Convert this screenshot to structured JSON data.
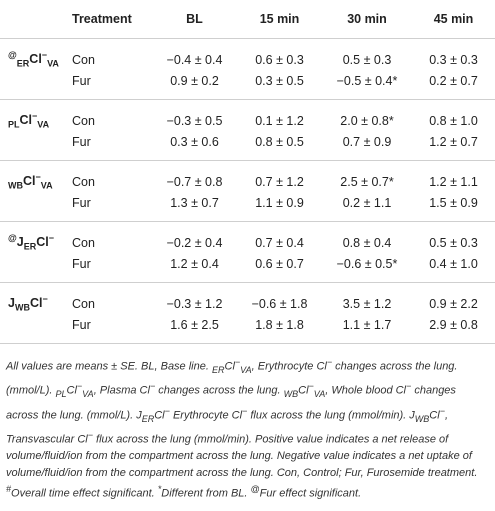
{
  "table": {
    "columns": [
      "Treatment",
      "BL",
      "15 min",
      "30 min",
      "45 min"
    ],
    "groups": [
      {
        "label": [
          {
            "t": "@",
            "s": "sup"
          },
          {
            "t": "ER",
            "s": "sub"
          },
          {
            "t": "Cl",
            "s": "n"
          },
          {
            "t": "−",
            "s": "sup"
          },
          {
            "t": "VA",
            "s": "sub"
          }
        ],
        "rows": [
          {
            "treatment": "Con",
            "values": [
              "−0.4 ± 0.4",
              "0.6 ± 0.3",
              "0.5 ± 0.3",
              "0.3 ± 0.3"
            ]
          },
          {
            "treatment": "Fur",
            "values": [
              "0.9 ± 0.2",
              "0.3 ± 0.5",
              "−0.5 ± 0.4*",
              "0.2 ± 0.7"
            ]
          }
        ]
      },
      {
        "label": [
          {
            "t": "PL",
            "s": "sub"
          },
          {
            "t": "Cl",
            "s": "n"
          },
          {
            "t": "−",
            "s": "sup"
          },
          {
            "t": "VA",
            "s": "sub"
          }
        ],
        "rows": [
          {
            "treatment": "Con",
            "values": [
              "−0.3 ± 0.5",
              "0.1 ± 1.2",
              "2.0 ± 0.8*",
              "0.8 ± 1.0"
            ]
          },
          {
            "treatment": "Fur",
            "values": [
              "0.3 ± 0.6",
              "0.8 ± 0.5",
              "0.7 ± 0.9",
              "1.2 ± 0.7"
            ]
          }
        ]
      },
      {
        "label": [
          {
            "t": "WB",
            "s": "sub"
          },
          {
            "t": "Cl",
            "s": "n"
          },
          {
            "t": "−",
            "s": "sup"
          },
          {
            "t": "VA",
            "s": "sub"
          }
        ],
        "rows": [
          {
            "treatment": "Con",
            "values": [
              "−0.7 ± 0.8",
              "0.7 ± 1.2",
              "2.5 ± 0.7*",
              "1.2 ± 1.1"
            ]
          },
          {
            "treatment": "Fur",
            "values": [
              "1.3 ± 0.7",
              "1.1 ± 0.9",
              "0.2 ± 1.1",
              "1.5 ± 0.9"
            ]
          }
        ]
      },
      {
        "label": [
          {
            "t": "@",
            "s": "sup"
          },
          {
            "t": "J",
            "s": "n"
          },
          {
            "t": "ER",
            "s": "sub"
          },
          {
            "t": "Cl",
            "s": "n"
          },
          {
            "t": "−",
            "s": "sup"
          }
        ],
        "rows": [
          {
            "treatment": "Con",
            "values": [
              "−0.2 ± 0.4",
              "0.7 ± 0.4",
              "0.8 ± 0.4",
              "0.5 ± 0.3"
            ]
          },
          {
            "treatment": "Fur",
            "values": [
              "1.2 ± 0.4",
              "0.6 ± 0.7",
              "−0.6 ± 0.5*",
              "0.4 ± 1.0"
            ]
          }
        ]
      },
      {
        "label": [
          {
            "t": "J",
            "s": "n"
          },
          {
            "t": "WB",
            "s": "sub"
          },
          {
            "t": "Cl",
            "s": "n"
          },
          {
            "t": "−",
            "s": "sup"
          }
        ],
        "rows": [
          {
            "treatment": "Con",
            "values": [
              "−0.3 ± 1.2",
              "−0.6 ± 1.8",
              "3.5 ± 1.2",
              "0.9 ± 2.2"
            ]
          },
          {
            "treatment": "Fur",
            "values": [
              "1.6 ± 2.5",
              "1.8 ± 1.8",
              "1.1 ± 1.7",
              "2.9 ± 0.8"
            ]
          }
        ]
      }
    ],
    "footnote": [
      {
        "t": "All values are means ± SE. BL, Base line. ",
        "s": "n"
      },
      {
        "t": "ER",
        "s": "sub"
      },
      {
        "t": "Cl",
        "s": "n"
      },
      {
        "t": "−",
        "s": "sup"
      },
      {
        "t": "VA",
        "s": "sub"
      },
      {
        "t": ", Erythrocyte Cl",
        "s": "n"
      },
      {
        "t": "−",
        "s": "sup"
      },
      {
        "t": " changes across the lung. (mmol/L). ",
        "s": "n"
      },
      {
        "t": "PL",
        "s": "sub"
      },
      {
        "t": "Cl",
        "s": "n"
      },
      {
        "t": "−",
        "s": "sup"
      },
      {
        "t": "VA",
        "s": "sub"
      },
      {
        "t": ", Plasma Cl",
        "s": "n"
      },
      {
        "t": "−",
        "s": "sup"
      },
      {
        "t": " changes across the lung. ",
        "s": "n"
      },
      {
        "t": "WB",
        "s": "sub"
      },
      {
        "t": "Cl",
        "s": "n"
      },
      {
        "t": "−",
        "s": "sup"
      },
      {
        "t": "VA",
        "s": "sub"
      },
      {
        "t": ", Whole blood Cl",
        "s": "n"
      },
      {
        "t": "−",
        "s": "sup"
      },
      {
        "t": " changes across the lung. (mmol/L). J",
        "s": "n"
      },
      {
        "t": "ER",
        "s": "sub"
      },
      {
        "t": "Cl",
        "s": "n"
      },
      {
        "t": "−",
        "s": "sup"
      },
      {
        "t": " Erythrocyte Cl",
        "s": "n"
      },
      {
        "t": "−",
        "s": "sup"
      },
      {
        "t": " flux across the lung (mmol/min). J",
        "s": "n"
      },
      {
        "t": "WB",
        "s": "sub"
      },
      {
        "t": "Cl",
        "s": "n"
      },
      {
        "t": "−",
        "s": "sup"
      },
      {
        "t": ", Transvascular Cl",
        "s": "n"
      },
      {
        "t": "−",
        "s": "sup"
      },
      {
        "t": " flux across the lung (mmol/min). Positive value indicates a net release of volume/fluid/ion from the compartment across the lung. Negative value indicates a net uptake of volume/fluid/ion from the compartment across the lung. Con, Control; Fur, Furosemide treatment. ",
        "s": "n"
      },
      {
        "t": "#",
        "s": "sup"
      },
      {
        "t": "Overall time effect significant. ",
        "s": "n"
      },
      {
        "t": "*",
        "s": "sup"
      },
      {
        "t": "Different from BL. ",
        "s": "n"
      },
      {
        "t": "@",
        "s": "sup"
      },
      {
        "t": "Fur effect significant.",
        "s": "n"
      }
    ]
  }
}
